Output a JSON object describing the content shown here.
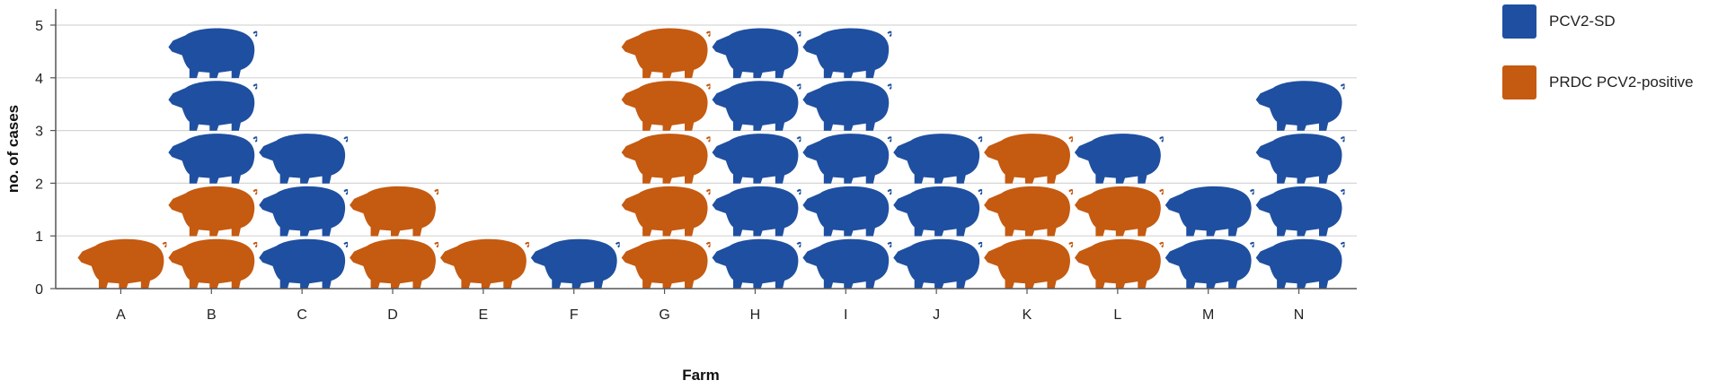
{
  "chart_data": {
    "type": "bar",
    "xlabel": "Farm",
    "ylabel": "no. of cases",
    "ylim": [
      0,
      5
    ],
    "yticks": [
      0,
      1,
      2,
      3,
      4,
      5
    ],
    "grid": true,
    "legend_position": "top-right",
    "mark": "stacked pig pictograms (one pig per case)",
    "categories": [
      "A",
      "B",
      "C",
      "D",
      "E",
      "F",
      "G",
      "H",
      "I",
      "J",
      "K",
      "L",
      "M",
      "N"
    ],
    "series": [
      {
        "name": "PCV2-SD",
        "color": "#1f4fa0",
        "values": [
          0,
          3,
          3,
          0,
          0,
          1,
          0,
          5,
          5,
          3,
          0,
          1,
          2,
          4
        ]
      },
      {
        "name": "PRDC PCV2-positive",
        "color": "#c55a11",
        "values": [
          1,
          2,
          0,
          2,
          1,
          0,
          5,
          0,
          0,
          0,
          3,
          2,
          0,
          0
        ]
      }
    ]
  }
}
